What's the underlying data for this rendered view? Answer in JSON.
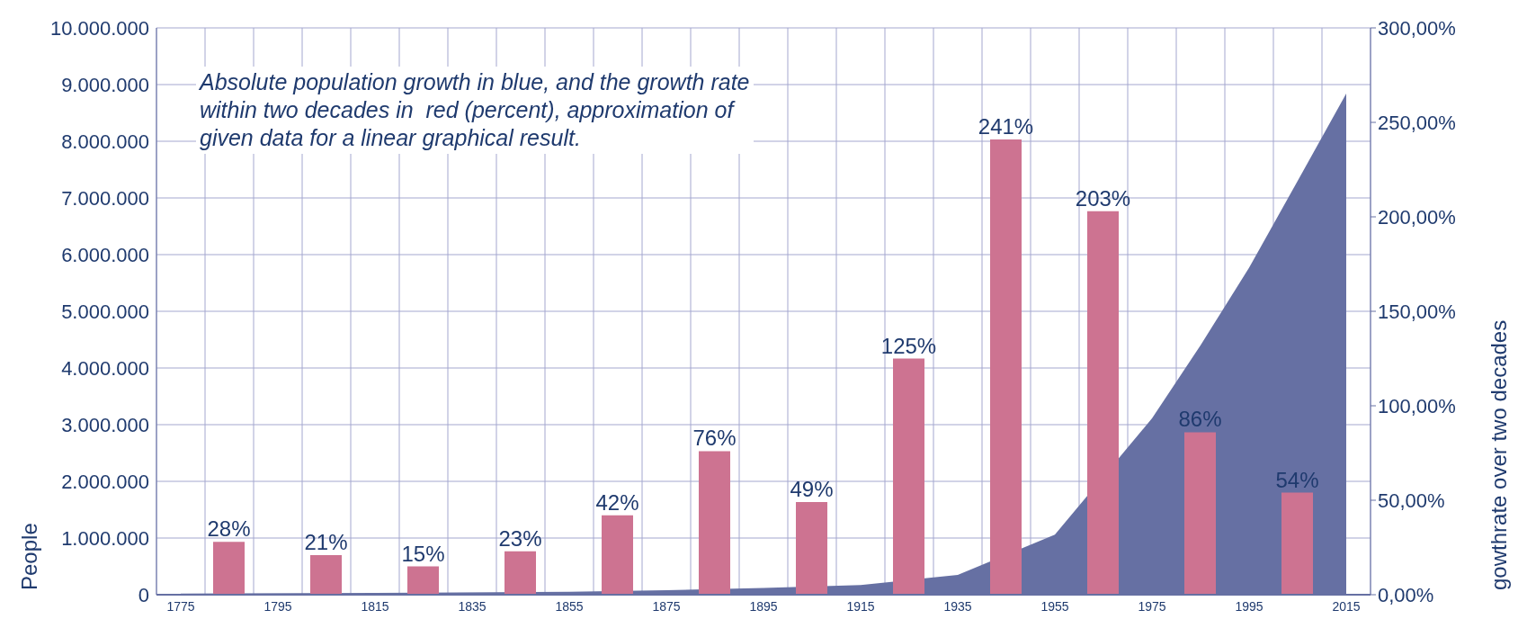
{
  "chart_data": {
    "type": "bar",
    "ylabel": "People",
    "y2label": "gowthrate over two decades",
    "annotations": [
      "Absolute population growth in blue, and the growth rate\nwithin two decades in  red (percent), approximation of\ngiven data for a linear graphical result."
    ],
    "xlim": [
      1770,
      2020
    ],
    "xticks": [
      {
        "value": 1770,
        "label": null
      },
      1775,
      {
        "value": 1780,
        "label": null
      },
      {
        "value": 1790,
        "label": null
      },
      1795,
      {
        "value": 1800,
        "label": null
      },
      {
        "value": 1810,
        "label": null
      },
      1815,
      {
        "value": 1820,
        "label": null
      },
      {
        "value": 1830,
        "label": null
      },
      1835,
      {
        "value": 1840,
        "label": null
      },
      {
        "value": 1850,
        "label": null
      },
      1855,
      {
        "value": 1860,
        "label": null
      },
      {
        "value": 1870,
        "label": null
      },
      1875,
      {
        "value": 1880,
        "label": null
      },
      {
        "value": 1890,
        "label": null
      },
      1895,
      {
        "value": 1900,
        "label": null
      },
      {
        "value": 1910,
        "label": null
      },
      1915,
      {
        "value": 1920,
        "label": null
      },
      {
        "value": 1930,
        "label": null
      },
      1935,
      {
        "value": 1940,
        "label": null
      },
      {
        "value": 1950,
        "label": null
      },
      1955,
      {
        "value": 1960,
        "label": null
      },
      {
        "value": 1970,
        "label": null
      },
      1975,
      {
        "value": 1980,
        "label": null
      },
      {
        "value": 1990,
        "label": null
      },
      1995,
      {
        "value": 2000,
        "label": null
      },
      {
        "value": 2010,
        "label": null
      },
      2015,
      {
        "value": 2020,
        "label": null
      }
    ],
    "ylim": [
      0,
      10000000
    ],
    "yticks": [
      {
        "value": 0,
        "label": "0"
      },
      {
        "value": 1000000,
        "label": "1.000.000"
      },
      {
        "value": 2000000,
        "label": "2.000.000"
      },
      {
        "value": 3000000,
        "label": "3.000.000"
      },
      {
        "value": 4000000,
        "label": "4.000.000"
      },
      {
        "value": 5000000,
        "label": "5.000.000"
      },
      {
        "value": 6000000,
        "label": "6.000.000"
      },
      {
        "value": 7000000,
        "label": "7.000.000"
      },
      {
        "value": 8000000,
        "label": "8.000.000"
      },
      {
        "value": 9000000,
        "label": "9.000.000"
      },
      {
        "value": 10000000,
        "label": "10.000.000"
      }
    ],
    "y2lim": [
      0,
      300
    ],
    "y2ticks": [
      {
        "value": 0,
        "label": "0,00%"
      },
      {
        "value": 50,
        "label": "50,00%"
      },
      {
        "value": 100,
        "label": "100,00%"
      },
      {
        "value": 150,
        "label": "150,00%"
      },
      {
        "value": 200,
        "label": "200,00%"
      },
      {
        "value": 250,
        "label": "250,00%"
      },
      {
        "value": 300,
        "label": "300,00%"
      }
    ],
    "grid": true,
    "legend": false,
    "series": [
      {
        "type": "area",
        "axis": "y",
        "color": "#6670a3",
        "x": [
          1775,
          1815,
          1855,
          1875,
          1895,
          1915,
          1925,
          1935,
          1945,
          1955,
          1965,
          1975,
          1985,
          1995,
          2005,
          2015
        ],
        "values": [
          20000,
          30000,
          50000,
          80000,
          120000,
          170000,
          null,
          350000,
          null,
          1060000,
          null,
          3110000,
          4400000,
          5770000,
          7300000,
          8840000
        ]
      },
      {
        "axis": "y2",
        "color": "#cd7391",
        "x": [
          1785,
          1805,
          1825,
          1845,
          1865,
          1885,
          1905,
          1925,
          1945,
          1965,
          1985,
          2005
        ],
        "values": [
          28,
          21,
          15,
          23,
          42,
          76,
          49,
          125,
          241,
          203,
          86,
          54
        ],
        "value_labels": [
          "28%",
          "21%",
          "15%",
          "23%",
          "42%",
          "76%",
          "49%",
          "125%",
          "241%",
          "203%",
          "86%",
          "54%"
        ]
      }
    ]
  }
}
